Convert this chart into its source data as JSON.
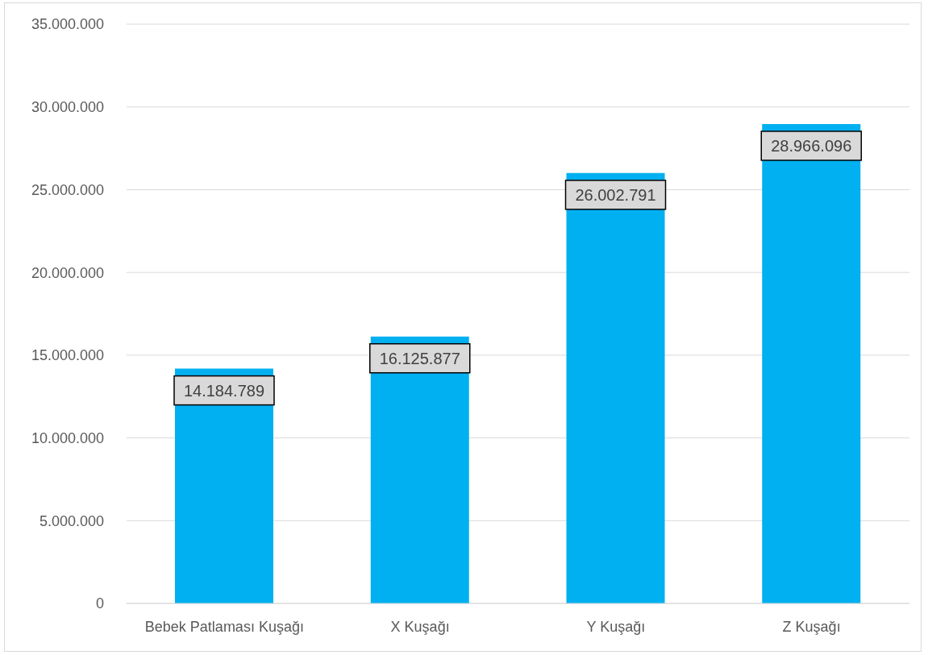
{
  "chart_data": {
    "type": "bar",
    "categories": [
      "Bebek Patlaması Kuşağı",
      "X Kuşağı",
      "Y Kuşağı",
      "Z Kuşağı"
    ],
    "values": [
      14184789,
      16125877,
      26002791,
      28966096
    ],
    "value_labels": [
      "14.184.789",
      "16.125.877",
      "26.002.791",
      "28.966.096"
    ],
    "color": "#00b0f0",
    "ylim": [
      0,
      35000000
    ],
    "yticks": [
      {
        "value": 0,
        "label": "0"
      },
      {
        "value": 5000000,
        "label": "5.000.000"
      },
      {
        "value": 10000000,
        "label": "10.000.000"
      },
      {
        "value": 15000000,
        "label": "15.000.000"
      },
      {
        "value": 20000000,
        "label": "20.000.000"
      },
      {
        "value": 25000000,
        "label": "25.000.000"
      },
      {
        "value": 30000000,
        "label": "30.000.000"
      },
      {
        "value": 35000000,
        "label": "35.000.000"
      }
    ],
    "grid": "y"
  }
}
